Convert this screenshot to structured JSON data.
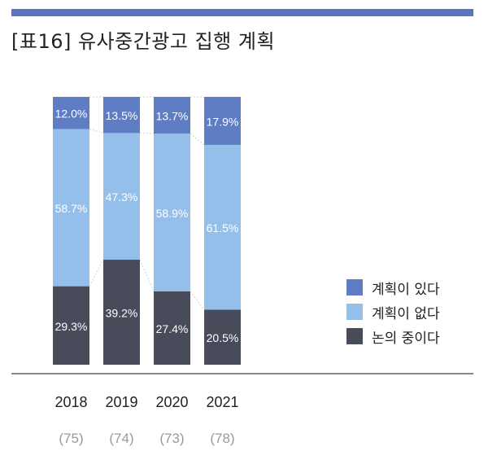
{
  "title": "[표16] 유사중간광고 집행 계획",
  "colors": {
    "rule": "#5a75bd",
    "plan_yes": "#5f7dc4",
    "plan_no": "#93bfea",
    "reviewing": "#474b5a",
    "axis": "#888888",
    "count_text": "#999999"
  },
  "chart_data": {
    "type": "bar",
    "stacked": true,
    "percent": true,
    "categories": [
      "2018",
      "2019",
      "2020",
      "2021"
    ],
    "counts": [
      "(75)",
      "(74)",
      "(73)",
      "(78)"
    ],
    "series": [
      {
        "name": "논의 중이다",
        "key": "reviewing",
        "values": [
          29.3,
          39.2,
          27.4,
          20.5
        ],
        "labels": [
          "29.3%",
          "39.2%",
          "27.4%",
          "20.5%"
        ]
      },
      {
        "name": "계획이 없다",
        "key": "plan_no",
        "values": [
          58.7,
          47.3,
          58.9,
          61.5
        ],
        "labels": [
          "58.7%",
          "47.3%",
          "58.9%",
          "61.5%"
        ]
      },
      {
        "name": "계획이 있다",
        "key": "plan_yes",
        "values": [
          12.0,
          13.5,
          13.7,
          17.9
        ],
        "labels": [
          "12.0%",
          "13.5%",
          "13.7%",
          "17.9%"
        ]
      }
    ],
    "ylim": [
      0,
      100
    ],
    "legend_position": "right"
  }
}
